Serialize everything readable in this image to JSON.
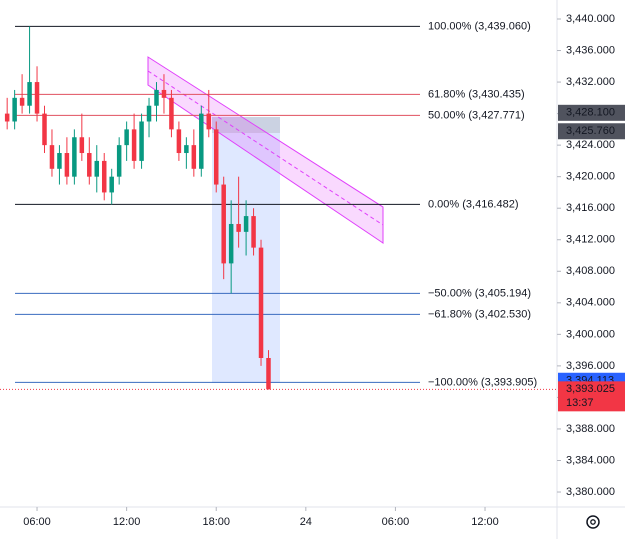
{
  "chart_data": {
    "type": "candlestick",
    "up_color": "#089981",
    "down_color": "#f23645",
    "x": [
      4.0,
      4.5,
      5.0,
      5.5,
      6.0,
      6.5,
      7.0,
      7.5,
      8.0,
      8.5,
      9.0,
      9.5,
      10.0,
      10.5,
      11.0,
      11.5,
      12.0,
      12.5,
      13.0,
      13.5,
      14.0,
      14.5,
      15.0,
      15.5,
      16.0,
      16.5,
      17.0,
      17.5,
      18.0,
      18.5,
      19.0,
      19.5,
      20.0,
      20.5,
      21.0,
      21.5
    ],
    "open": [
      3428,
      3427,
      3430,
      3429,
      3432,
      3428,
      3424,
      3421,
      3423,
      3420,
      3425,
      3423,
      3420,
      3422,
      3418,
      3420,
      3424,
      3426,
      3422,
      3427,
      3429,
      3431,
      3430,
      3426,
      3423,
      3424,
      3421,
      3428,
      3426,
      3419,
      3409,
      3414,
      3413,
      3415,
      3411,
      3397
    ],
    "high": [
      3430,
      3431,
      3433,
      3439.06,
      3434,
      3429,
      3426,
      3424,
      3425,
      3426,
      3428,
      3425,
      3424,
      3423,
      3421,
      3425,
      3427,
      3428,
      3428,
      3430,
      3432,
      3433,
      3431,
      3427,
      3425,
      3426,
      3429,
      3431,
      3427,
      3420,
      3417,
      3420,
      3417,
      3416,
      3412,
      3398
    ],
    "low": [
      3426,
      3426,
      3428,
      3428,
      3427,
      3423,
      3420,
      3419,
      3419,
      3419,
      3422,
      3419,
      3418,
      3417,
      3416.48,
      3419,
      3422,
      3421,
      3421,
      3425,
      3427,
      3428,
      3425,
      3422,
      3421,
      3420,
      3420,
      3425,
      3418,
      3407,
      3405.19,
      3411,
      3410,
      3410,
      3396,
      3393
    ],
    "close": [
      3427,
      3430,
      3429,
      3432,
      3428,
      3424,
      3421,
      3423,
      3420,
      3425,
      3423,
      3420,
      3422,
      3418,
      3420,
      3424,
      3426,
      3422,
      3427,
      3429,
      3431,
      3430,
      3426,
      3423,
      3424,
      3421,
      3428,
      3426,
      3419,
      3409,
      3414,
      3413,
      3415,
      3411,
      3397,
      3393.025
    ],
    "xlim": [
      3.52,
      40.82
    ],
    "xticks": [
      {
        "value": 6,
        "label": "06:00"
      },
      {
        "value": 12,
        "label": "12:00"
      },
      {
        "value": 18,
        "label": "18:00"
      },
      {
        "value": 24,
        "label": "24"
      },
      {
        "value": 30,
        "label": "06:00"
      },
      {
        "value": 36,
        "label": "12:00"
      }
    ],
    "ylim": [
      3378.1,
      3442.41
    ],
    "yticks": [
      {
        "value": 3380,
        "label": "3,380.000"
      },
      {
        "value": 3384,
        "label": "3,384.000"
      },
      {
        "value": 3388,
        "label": "3,388.000"
      },
      {
        "value": 3392,
        "label": "3,392.000"
      },
      {
        "value": 3396,
        "label": "3,396.000"
      },
      {
        "value": 3400,
        "label": "3,400.000"
      },
      {
        "value": 3404,
        "label": "3,404.000"
      },
      {
        "value": 3408,
        "label": "3,408.000"
      },
      {
        "value": 3412,
        "label": "3,412.000"
      },
      {
        "value": 3416,
        "label": "3,416.000"
      },
      {
        "value": 3420,
        "label": "3,420.000"
      },
      {
        "value": 3424,
        "label": "3,424.000"
      },
      {
        "value": 3428,
        "label": "3,428.000"
      },
      {
        "value": 3432,
        "label": "3,432.000"
      },
      {
        "value": 3436,
        "label": "3,436.000"
      },
      {
        "value": 3440,
        "label": "3,440.000"
      }
    ],
    "fib_levels": [
      {
        "value": 3439.06,
        "label": "100.00% (3,439.060)",
        "color": "#131722"
      },
      {
        "value": 3430.435,
        "label": "61.80% (3,430.435)",
        "color": "#e0505f"
      },
      {
        "value": 3427.771,
        "label": "50.00% (3,427.771)",
        "color": "#e0505f"
      },
      {
        "value": 3416.482,
        "label": "0.00% (3,416.482)",
        "color": "#131722"
      },
      {
        "value": 3405.194,
        "label": "−50.00% (3,405.194)",
        "color": "#3a6bbf"
      },
      {
        "value": 3402.53,
        "label": "−61.80% (3,402.530)",
        "color": "#3a6bbf"
      },
      {
        "value": 3393.905,
        "label": "−100.00% (3,393.905)",
        "color": "#3a6bbf"
      }
    ],
    "price_tags": [
      {
        "value": 3428.1,
        "label": "3,428.100",
        "color": "#50535e"
      },
      {
        "value": 3425.76,
        "label": "3,425.760",
        "color": "#50535e"
      },
      {
        "value": 3394.113,
        "label": "3,394.113",
        "color": "#2962ff"
      },
      {
        "value": 3393.025,
        "label": "3,393.025",
        "color": "#f23645"
      }
    ],
    "countdown": "13:37"
  }
}
